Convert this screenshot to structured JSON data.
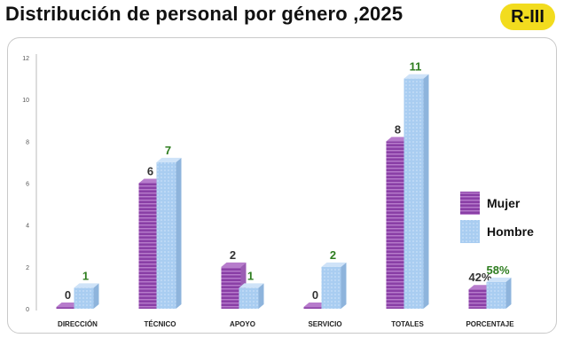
{
  "header": {
    "title": "Distribución de personal por género ,2025",
    "badge": "R-III"
  },
  "colors": {
    "mujer": "#8a3fa6",
    "mujer_stripe": "#b77ccc",
    "hombre": "#a9cdf1",
    "hombre_dark": "#7aa7d6",
    "value_mujer": "#333333",
    "value_hombre": "#2e7d1f",
    "badge": "#f2dc1e"
  },
  "chart_data": {
    "type": "bar",
    "title": "Distribución de personal por género ,2025",
    "categories": [
      "DIRECCIÓN",
      "TÉCNICO",
      "APOYO",
      "SERVICIO",
      "TOTALES",
      "PORCENTAJE"
    ],
    "series": [
      {
        "name": "Mujer",
        "values": [
          0,
          6,
          2,
          0,
          8,
          0.42
        ],
        "labels": [
          "0",
          "6",
          "2",
          "0",
          "8",
          "42%"
        ]
      },
      {
        "name": "Hombre",
        "values": [
          1,
          7,
          1,
          2,
          11,
          0.58
        ],
        "labels": [
          "1",
          "7",
          "1",
          "2",
          "11",
          "58%"
        ]
      }
    ],
    "yticks": [
      "0",
      "2",
      "4",
      "6",
      "8",
      "10",
      "12"
    ],
    "ylim": [
      0,
      12
    ],
    "grid": false,
    "legend": "right"
  }
}
